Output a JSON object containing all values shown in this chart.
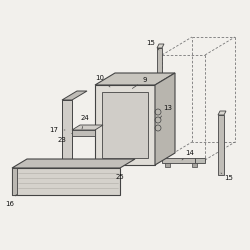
{
  "bg_color": "#f2f0ec",
  "lc": "#444444",
  "dc": "#777777",
  "fc_light": "#d8d5cf",
  "fc_mid": "#c0bdb7",
  "fc_dark": "#a8a5a0",
  "white": "#f8f7f5"
}
